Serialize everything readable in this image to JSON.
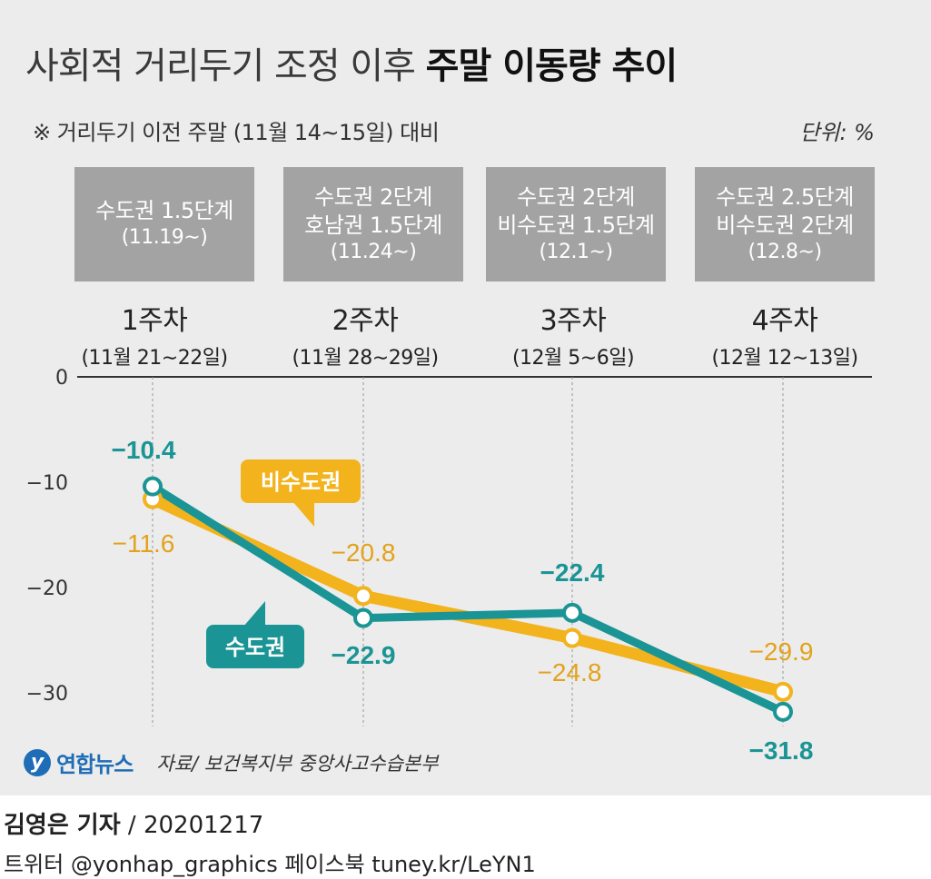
{
  "header": {
    "title_regular": "사회적 거리두기 조정 이후",
    "title_bold": "주말 이동량 추이",
    "note": "※ 거리두기 이전 주말 (11월 14∼15일) 대비",
    "unit": "단위: %"
  },
  "stages": [
    {
      "lines": [
        "수도권 1.5단계"
      ],
      "date": "(11.19∼)"
    },
    {
      "lines": [
        "수도권 2단계",
        "호남권 1.5단계"
      ],
      "date": "(11.24∼)"
    },
    {
      "lines": [
        "수도권 2단계",
        "비수도권 1.5단계"
      ],
      "date": "(12.1∼)"
    },
    {
      "lines": [
        "수도권 2.5단계",
        "비수도권 2단계"
      ],
      "date": "(12.8∼)"
    }
  ],
  "colors": {
    "capital": "#1a9494",
    "non_capital": "#f2b31d",
    "non_capital_label": "#e3a21a",
    "stage_box": "#a3a3a3",
    "axis": "#333333",
    "guide": "#999999"
  },
  "chart_data": {
    "type": "line",
    "categories": [
      "1주차",
      "2주차",
      "3주차",
      "4주차"
    ],
    "category_dates": [
      "(11월 21∼22일)",
      "(11월 28∼29일)",
      "(12월 5∼6일)",
      "(12월 12∼13일)"
    ],
    "series": [
      {
        "name": "비수도권",
        "values": [
          -11.6,
          -20.8,
          -24.8,
          -29.9
        ],
        "labels": [
          "−11.6",
          "−20.8",
          "−24.8",
          "−29.9"
        ]
      },
      {
        "name": "수도권",
        "values": [
          -10.4,
          -22.9,
          -22.4,
          -31.8
        ],
        "labels": [
          "−10.4",
          "−22.9",
          "−22.4",
          "−31.8"
        ]
      }
    ],
    "y_ticks": [
      0,
      -10,
      -20,
      -30
    ],
    "y_tick_labels": [
      "0",
      "−10",
      "−20",
      "−30"
    ],
    "ylim": [
      -34,
      0
    ],
    "grid": false,
    "legend": "inline callouts"
  },
  "footer": {
    "logo_mark": "y",
    "logo_text": "연합뉴스",
    "source": "자료/ 보건복지부 중앙사고수습본부",
    "byline_name": "김영은 기자",
    "byline_date": " / 20201217",
    "social": "트위터 @yonhap_graphics  페이스북 tuney.kr/LeYN1"
  }
}
